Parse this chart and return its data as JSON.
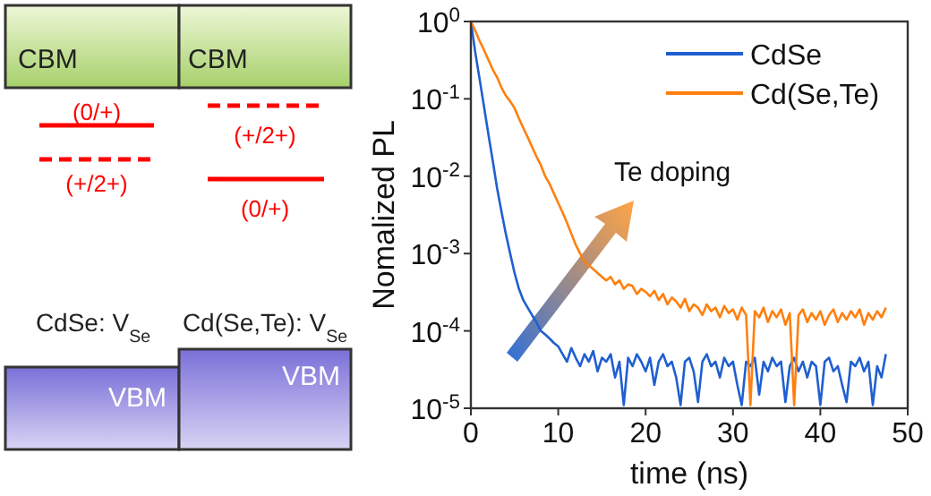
{
  "chart_data": [
    {
      "type": "other",
      "annotations": [
        "CBM",
        "CBM",
        "(0/+)",
        "(+/2+)",
        "(+/2+)",
        "(0/+)",
        "CdSe: V$_{Se}$",
        "Cd(Se,Te): V$_{Se}$",
        "VBM",
        "VBM"
      ]
    },
    {
      "type": "line",
      "xlabel": "time (ns)",
      "ylabel": "Nomalized PL",
      "log": "y",
      "legend": "top right",
      "grid": false,
      "annotations": [
        "Te doping"
      ],
      "xlim": [
        0,
        50
      ],
      "xticks": [
        0,
        10,
        20,
        30,
        40,
        50
      ],
      "ylim": [
        1e-05,
        1
      ],
      "yticks": [
        {
          "value": 1e-05,
          "label": "10$^{-5}$"
        },
        {
          "value": 0.0001,
          "label": "10$^{-4}$"
        },
        {
          "value": 0.001,
          "label": "10$^{-3}$"
        },
        {
          "value": 0.01,
          "label": "10$^{-2}$"
        },
        {
          "value": 0.1,
          "label": "10$^{-1}$"
        },
        {
          "value": 1,
          "label": "10$^{0}$"
        }
      ],
      "x": [
        0,
        0.5,
        1,
        1.5,
        2,
        2.5,
        3,
        3.5,
        4,
        4.5,
        5,
        5.5,
        6,
        6.5,
        7,
        7.5,
        8,
        8.5,
        9,
        9.5,
        10,
        10.5,
        11,
        11.5,
        12,
        12.5,
        13,
        13.5,
        14,
        14.5,
        15,
        15.5,
        16,
        16.5,
        17,
        17.5,
        18,
        18.5,
        19,
        19.5,
        20,
        20.5,
        21,
        21.5,
        22,
        22.5,
        23,
        23.5,
        24,
        24.5,
        25,
        25.5,
        26,
        26.5,
        27,
        27.5,
        28,
        28.5,
        29,
        29.5,
        30,
        30.5,
        31,
        31.5,
        32,
        32.5,
        33,
        33.5,
        34,
        34.5,
        35,
        35.5,
        36,
        36.5,
        37,
        37.5,
        38,
        38.5,
        39,
        39.5,
        40,
        40.5,
        41,
        41.5,
        42,
        42.5,
        43,
        43.5,
        44,
        44.5,
        45,
        45.5,
        46,
        46.5,
        47,
        47.5
      ],
      "series": [
        {
          "name": "CdSe",
          "color": "#1f5fd0",
          "values": [
            1,
            0.4,
            0.18,
            0.08,
            0.035,
            0.016,
            0.007,
            0.0035,
            0.0018,
            0.001,
            0.00056,
            0.00035,
            0.00025,
            0.0002,
            0.00016,
            0.00013,
            0.0001,
            9e-05,
            8e-05,
            7e-05,
            6.3e-05,
            5e-05,
            4e-05,
            6e-05,
            4.5e-05,
            3.5e-05,
            5e-05,
            4e-05,
            5.5e-05,
            3e-05,
            4.5e-05,
            4e-05,
            5e-05,
            2.5e-05,
            4e-05,
            1.1e-05,
            4.5e-05,
            3.5e-05,
            5e-05,
            4e-05,
            3e-05,
            4.5e-05,
            2e-05,
            4e-05,
            5e-05,
            3.5e-05,
            4e-05,
            2.5e-05,
            1.1e-05,
            4e-05,
            4.5e-05,
            3e-05,
            1.2e-05,
            4e-05,
            5e-05,
            3.5e-05,
            4e-05,
            2.5e-05,
            4.5e-05,
            3.5e-05,
            4e-05,
            2e-05,
            1.1e-05,
            4e-05,
            3.5e-05,
            4.5e-05,
            1.5e-05,
            4e-05,
            3e-05,
            4.5e-05,
            3.5e-05,
            4e-05,
            1.2e-05,
            3.5e-05,
            4.5e-05,
            3e-05,
            4e-05,
            2.5e-05,
            4e-05,
            3.5e-05,
            1.1e-05,
            4e-05,
            4.5e-05,
            3e-05,
            3.5e-05,
            2e-05,
            1.2e-05,
            4e-05,
            3.5e-05,
            4.5e-05,
            3e-05,
            4e-05,
            1.1e-05,
            3.5e-05,
            2.5e-05,
            5e-05
          ]
        },
        {
          "name": "Cd(Se,Te)",
          "color": "#ff7f0e",
          "values": [
            1,
            0.76,
            0.56,
            0.43,
            0.32,
            0.24,
            0.19,
            0.14,
            0.11,
            0.093,
            0.076,
            0.056,
            0.042,
            0.032,
            0.024,
            0.018,
            0.014,
            0.01,
            0.008,
            0.006,
            0.0045,
            0.0034,
            0.0025,
            0.0018,
            0.0013,
            0.001,
            0.0008,
            0.0007,
            0.00063,
            0.00056,
            0.0005,
            0.00045,
            0.0005,
            0.0004,
            0.00045,
            0.00035,
            0.0004,
            0.00038,
            0.0003,
            0.00035,
            0.00032,
            0.00028,
            0.00033,
            0.00025,
            0.0003,
            0.00022,
            0.00027,
            0.00024,
            0.0002,
            0.00026,
            0.00018,
            0.00022,
            0.0002,
            0.00016,
            0.00022,
            0.00018,
            0.0002,
            0.00015,
            0.00021,
            0.00017,
            0.00019,
            0.00014,
            0.0002,
            0.00016,
            1.1e-05,
            0.00018,
            0.00015,
            0.0002,
            0.00013,
            0.00018,
            0.00015,
            0.00019,
            0.00012,
            0.00017,
            1.1e-05,
            0.00016,
            0.00019,
            0.00013,
            0.00017,
            0.00014,
            0.00018,
            0.00012,
            0.00016,
            0.00019,
            0.00013,
            0.00017,
            0.00014,
            0.00018,
            0.00015,
            0.00019,
            0.00012,
            0.00017,
            0.00014,
            0.00018,
            0.00015,
            0.0002
          ]
        }
      ]
    }
  ]
}
